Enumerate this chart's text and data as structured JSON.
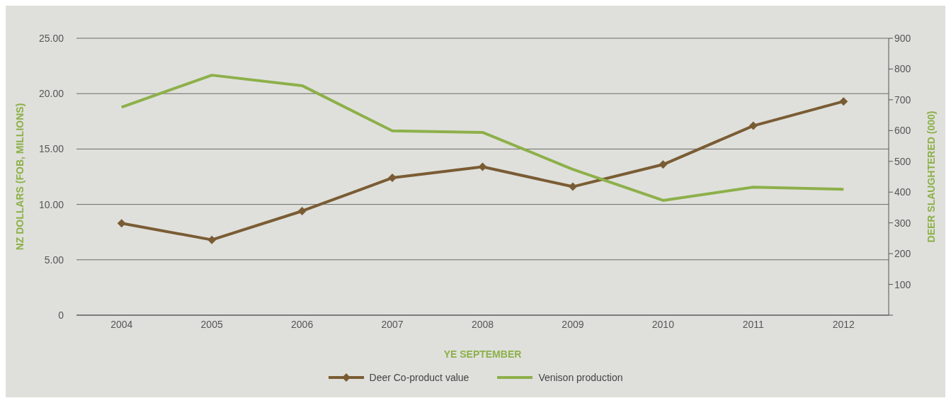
{
  "chart_data": {
    "type": "line",
    "xlabel": "YE SEPTEMBER",
    "ylabel": "NZ DOLLARS (FOB, MILLIONS)",
    "y2label": "DEER SLAUGHTERED (000)",
    "categories": [
      "2004",
      "2005",
      "2006",
      "2007",
      "2008",
      "2009",
      "2010",
      "2011",
      "2012"
    ],
    "series": [
      {
        "name": "Deer Co-product value",
        "color": "#7a5c34",
        "marker": "diamond",
        "values": [
          8.3,
          6.8,
          9.4,
          12.4,
          13.4,
          11.6,
          13.6,
          17.1,
          19.3
        ]
      },
      {
        "name": "Venison production",
        "color": "#8db04a",
        "marker": "none",
        "axis": "y2",
        "values": [
          676,
          780,
          746,
          599,
          594,
          474,
          373,
          416,
          409
        ]
      }
    ],
    "ylim": [
      0,
      25
    ],
    "yticks": [
      0,
      {
        "value": 5,
        "label": "5.00"
      },
      {
        "value": 10,
        "label": "10.00"
      },
      {
        "value": 15,
        "label": "15.00"
      },
      {
        "value": 20,
        "label": "20.00"
      },
      {
        "value": 25,
        "label": "25.00"
      }
    ],
    "y2lim": [
      0,
      900
    ],
    "y2ticks": [
      {
        "value": 0,
        "label": null
      },
      100,
      200,
      300,
      400,
      500,
      600,
      700,
      800,
      900
    ],
    "grid": "y",
    "legend": "bottom",
    "line_style": "solid"
  }
}
